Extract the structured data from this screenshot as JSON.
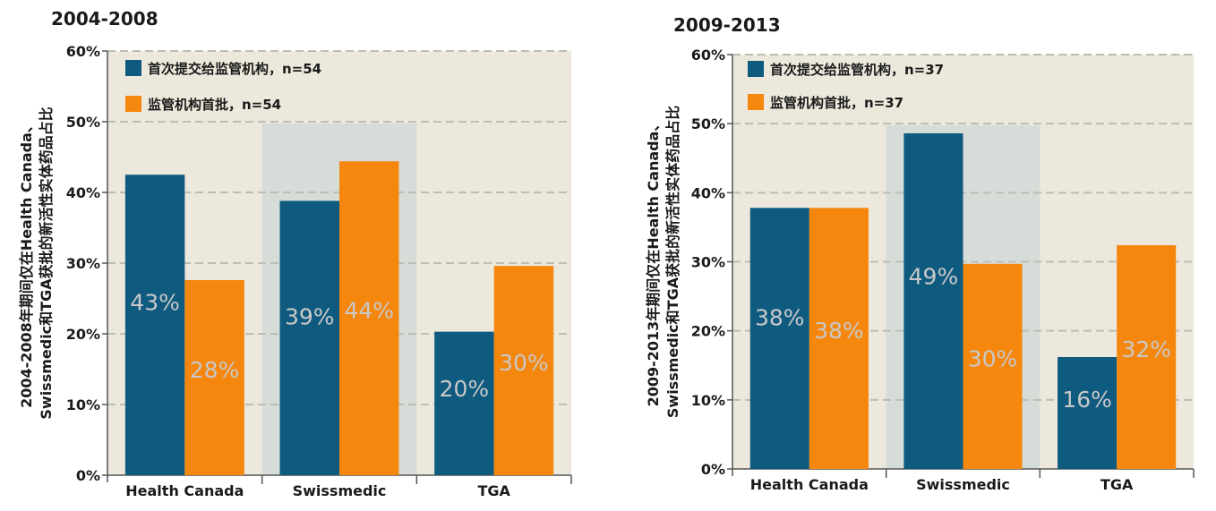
{
  "colors": {
    "series1": "#0f5a7f",
    "series2": "#f5870f",
    "plot_bg": "#ece8dc",
    "highlight_band": "#d6ddd9",
    "grid": "#bdbdb5",
    "bar_label": "#c8c8c8"
  },
  "chart_data": [
    {
      "type": "bar",
      "title": "2004-2008",
      "ylabel": "2004-2008年期间仅在Health Canada、Swissmedic和TGA获批的新活性实体药品占比",
      "ylim": [
        0,
        60
      ],
      "yticks": [
        "0%",
        "10%",
        "20%",
        "30%",
        "40%",
        "50%",
        "60%"
      ],
      "categories": [
        "Health Canada",
        "Swissmedic",
        "TGA"
      ],
      "highlight_category": "Swissmedic",
      "legend_position": "top-left",
      "series": [
        {
          "name": "首次提交给监管机构，n=54",
          "values": [
            42.5,
            38.8,
            20.3
          ],
          "labels": [
            "43%",
            "39%",
            "20%"
          ]
        },
        {
          "name": "监管机构首批，n=54",
          "values": [
            27.6,
            44.4,
            29.6
          ],
          "labels": [
            "28%",
            "44%",
            "30%"
          ]
        }
      ]
    },
    {
      "type": "bar",
      "title": "2009-2013",
      "ylabel": "2009-2013年期间仅在Health Canada、Swissmedic和TGA获批的新活性实体药品占比",
      "ylim": [
        0,
        60
      ],
      "yticks": [
        "0%",
        "10%",
        "20%",
        "30%",
        "40%",
        "50%",
        "60%"
      ],
      "categories": [
        "Health Canada",
        "Swissmedic",
        "TGA"
      ],
      "highlight_category": "Swissmedic",
      "legend_position": "top-left",
      "series": [
        {
          "name": "首次提交给监管机构，n=37",
          "values": [
            37.8,
            48.6,
            16.2
          ],
          "labels": [
            "38%",
            "49%",
            "16%"
          ]
        },
        {
          "name": "监管机构首批，n=37",
          "values": [
            37.8,
            29.7,
            32.4
          ],
          "labels": [
            "38%",
            "30%",
            "32%"
          ]
        }
      ]
    }
  ]
}
